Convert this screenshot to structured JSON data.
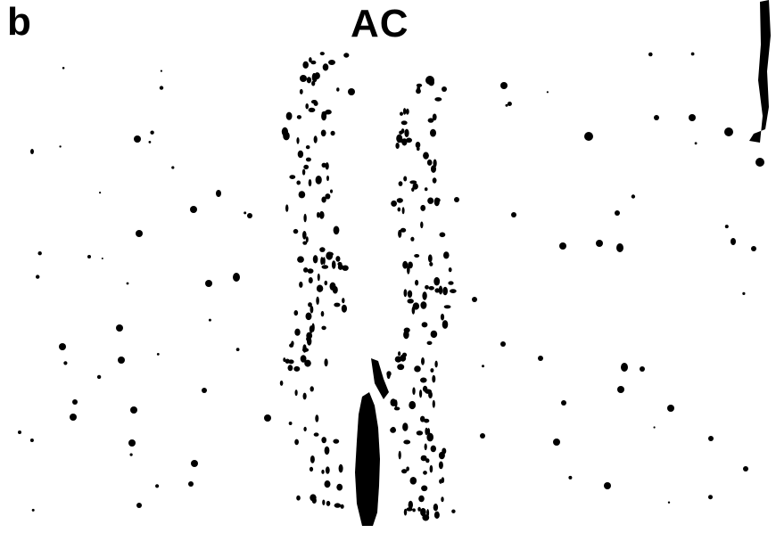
{
  "panel": {
    "letter": "b",
    "title": "AC"
  },
  "image": {
    "description_tag": "micrograph-dot-pattern",
    "foreground_color": "#000000",
    "background_color": "#ffffff"
  }
}
